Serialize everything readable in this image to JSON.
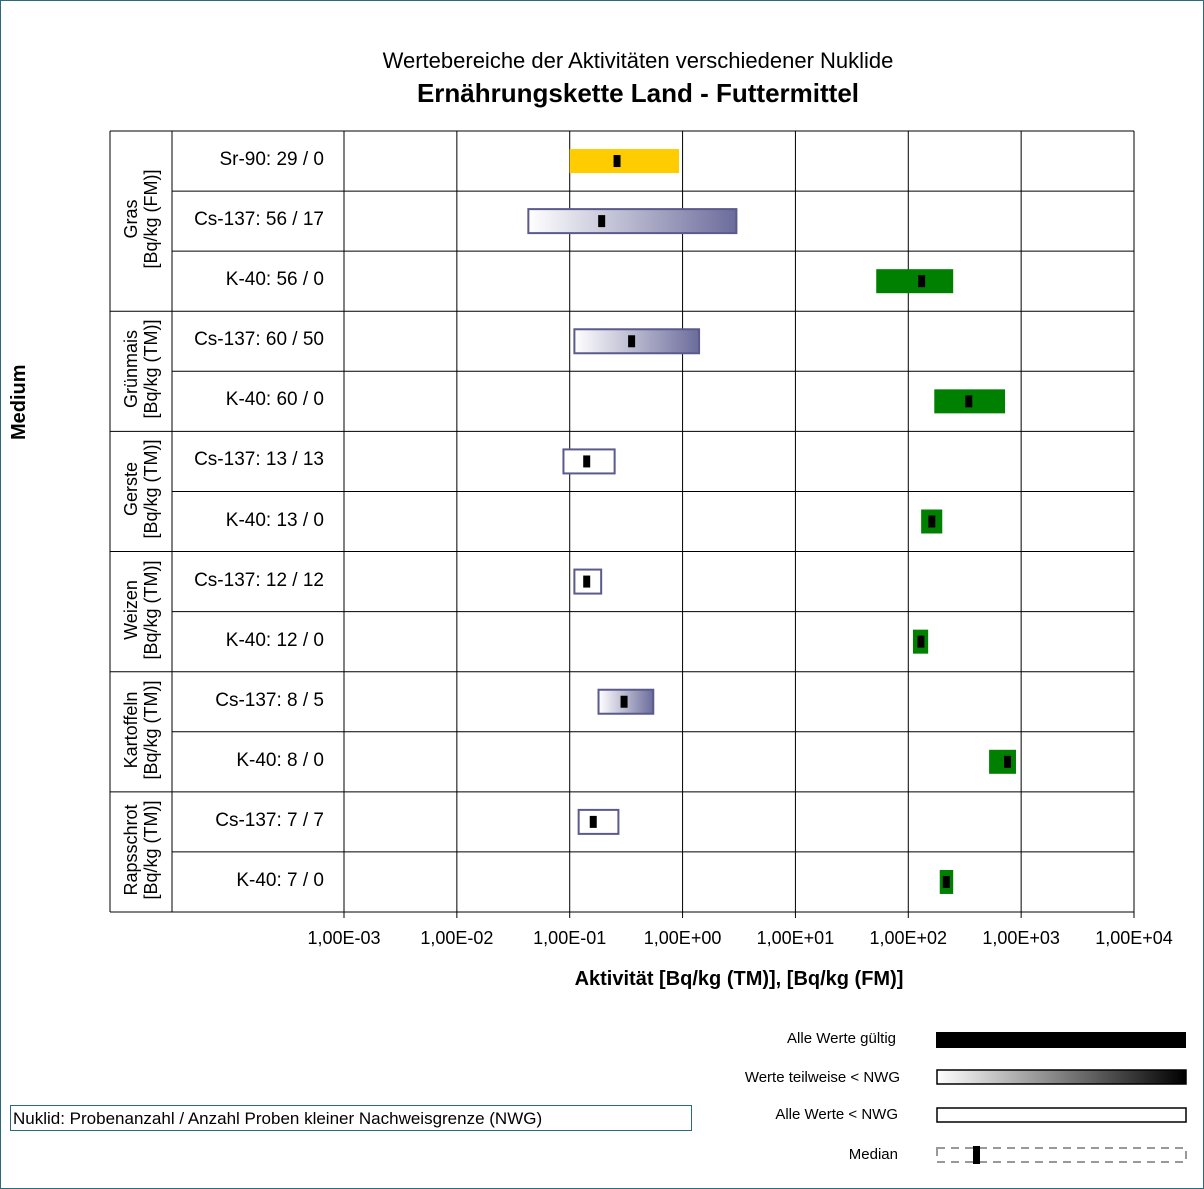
{
  "title": "Wertebereiche der Aktivitäten verschiedener Nuklide",
  "subtitle": "Ernährungskette Land - Futtermittel",
  "note": "Nuklid: Probenanzahl / Anzahl Proben kleiner Nachweisgrenze (NWG)",
  "legend": {
    "all_valid": "Alle Werte gültig",
    "partial": "Werte teilweise < NWG",
    "all_below": "Alle Werte < NWG",
    "median": "Median"
  },
  "colors": {
    "sr90": "#ffcc00",
    "k40": "#008000",
    "cs137_border": "#5a5a8c",
    "cs137_fill_end": "#6c6c9c",
    "median": "#000000",
    "grid": "#000000"
  },
  "chart_data": {
    "type": "range",
    "title": "Wertebereiche der Aktivitäten verschiedener Nuklide",
    "subtitle": "Ernährungskette Land - Futtermittel",
    "xlabel": "Aktivität [Bq/kg (TM)], [Bq/kg (FM)]",
    "ylabel": "Medium",
    "xscale": "log",
    "xlim": [
      0.001,
      10000
    ],
    "xticks": [
      "1,00E-03",
      "1,00E-02",
      "1,00E-01",
      "1,00E+00",
      "1,00E+01",
      "1,00E+02",
      "1,00E+03",
      "1,00E+04"
    ],
    "groups": [
      {
        "label": "Gras\n[Bq/kg (FM)]",
        "rows": [
          0,
          1,
          2
        ]
      },
      {
        "label": "Grünmais\n[Bq/kg (TM)]",
        "rows": [
          3,
          4
        ]
      },
      {
        "label": "Gerste\n[Bq/kg (TM)]",
        "rows": [
          5,
          6
        ]
      },
      {
        "label": "Weizen\n[Bq/kg (TM)]",
        "rows": [
          7,
          8
        ]
      },
      {
        "label": "Kartoffeln\n[Bq/kg (TM)]",
        "rows": [
          9,
          10
        ]
      },
      {
        "label": "Rapsschrot\n[Bq/kg (TM)]",
        "rows": [
          11,
          12
        ]
      }
    ],
    "rows": [
      {
        "label": "Sr-90: 29 / 0",
        "kind": "sr90",
        "min": 0.1,
        "max": 0.93,
        "median": 0.26
      },
      {
        "label": "Cs-137: 56 / 17",
        "kind": "partial",
        "min": 0.043,
        "max": 3.0,
        "median": 0.19
      },
      {
        "label": "K-40: 56 / 0",
        "kind": "k40",
        "min": 52,
        "max": 250,
        "median": 130
      },
      {
        "label": "Cs-137: 60 / 50",
        "kind": "partial",
        "min": 0.11,
        "max": 1.4,
        "median": 0.35
      },
      {
        "label": "K-40: 60 / 0",
        "kind": "k40",
        "min": 170,
        "max": 720,
        "median": 340
      },
      {
        "label": "Cs-137: 13 / 13",
        "kind": "below",
        "min": 0.088,
        "max": 0.25,
        "median": 0.14
      },
      {
        "label": "K-40: 13 / 0",
        "kind": "k40",
        "min": 130,
        "max": 200,
        "median": 160
      },
      {
        "label": "Cs-137: 12 / 12",
        "kind": "below",
        "min": 0.11,
        "max": 0.19,
        "median": 0.14
      },
      {
        "label": "K-40: 12 / 0",
        "kind": "k40",
        "min": 110,
        "max": 150,
        "median": 128
      },
      {
        "label": "Cs-137: 8 / 5",
        "kind": "partial",
        "min": 0.18,
        "max": 0.55,
        "median": 0.3
      },
      {
        "label": "K-40: 8 / 0",
        "kind": "k40",
        "min": 520,
        "max": 900,
        "median": 750
      },
      {
        "label": "Cs-137: 7 / 7",
        "kind": "below",
        "min": 0.12,
        "max": 0.27,
        "median": 0.16
      },
      {
        "label": "K-40: 7 / 0",
        "kind": "k40",
        "min": 190,
        "max": 250,
        "median": 215
      }
    ]
  }
}
